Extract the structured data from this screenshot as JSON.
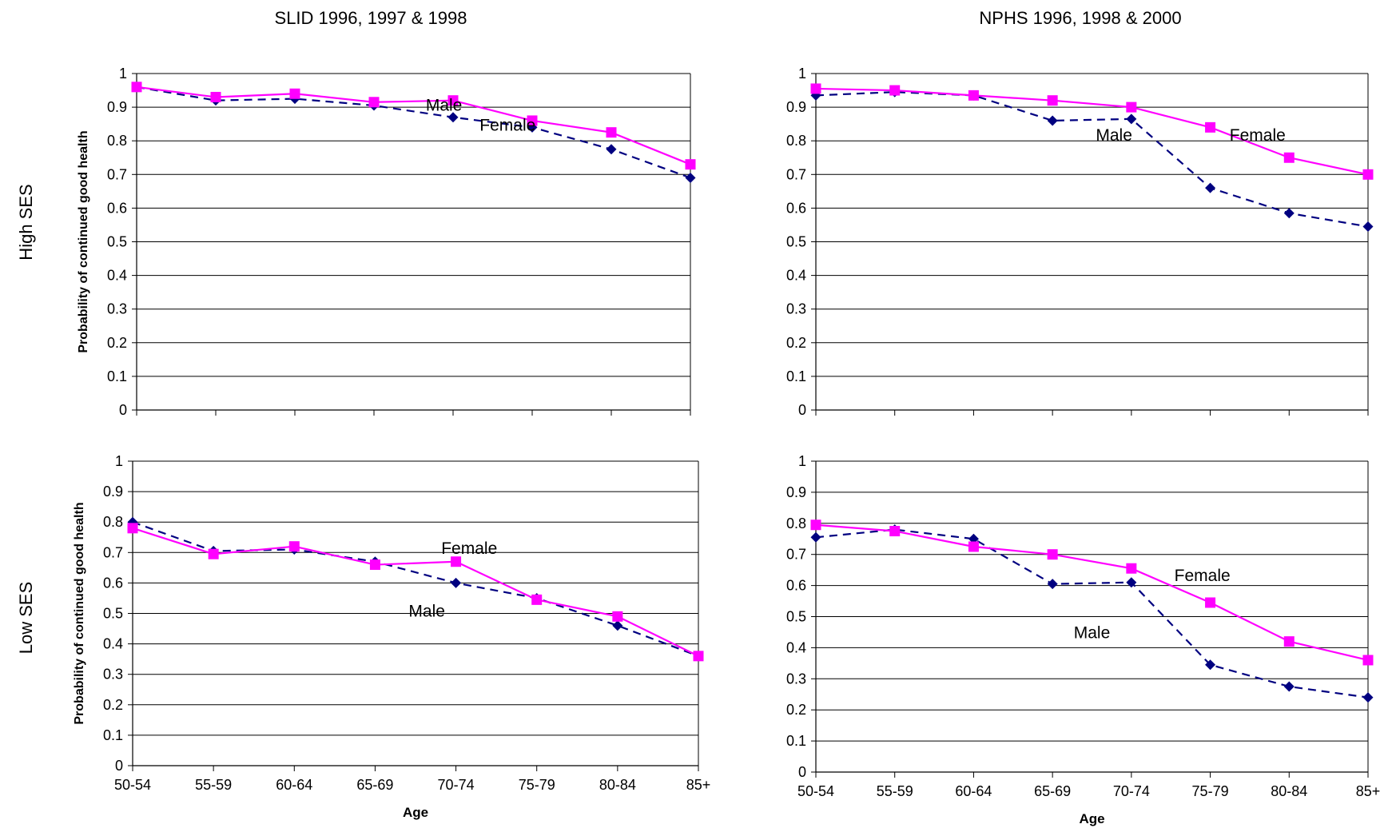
{
  "figure": {
    "column_titles": [
      "SLID 1996, 1997 & 1998",
      "NPHS 1996, 1998 & 2000"
    ],
    "row_labels": [
      "High SES",
      "Low SES"
    ]
  },
  "colors": {
    "male": "#000080",
    "female": "#ff00ff",
    "grid": "#000000"
  },
  "chart_data": [
    {
      "type": "line",
      "panel": "SLID-High SES",
      "title": "SLID 1996, 1997 & 1998",
      "row": "High SES",
      "xlabel": "",
      "ylabel": "Probability of continued good health",
      "categories": [
        "50-54",
        "55-59",
        "60-64",
        "65-69",
        "70-74",
        "75-79",
        "80-84",
        "85+"
      ],
      "show_x_ticks": false,
      "ylim": [
        0,
        1
      ],
      "yticks": [
        "0",
        "0.1",
        "0.2",
        "0.3",
        "0.4",
        "0.5",
        "0.6",
        "0.7",
        "0.8",
        "0.9",
        "1"
      ],
      "grid": true,
      "series": [
        {
          "name": "Male",
          "values": [
            0.96,
            0.92,
            0.925,
            0.905,
            0.87,
            0.84,
            0.775,
            0.69
          ]
        },
        {
          "name": "Female",
          "values": [
            0.96,
            0.93,
            0.94,
            0.915,
            0.92,
            0.86,
            0.825,
            0.73
          ]
        }
      ],
      "annotations": [
        "Female",
        "Male"
      ]
    },
    {
      "type": "line",
      "panel": "NPHS-High SES",
      "title": "NPHS 1996, 1998 & 2000",
      "row": "High SES",
      "xlabel": "",
      "ylabel": "",
      "categories": [
        "50-54",
        "55-59",
        "60-64",
        "65-69",
        "70-74",
        "75-79",
        "80-84",
        "85+"
      ],
      "show_x_ticks": false,
      "ylim": [
        0,
        1
      ],
      "yticks": [
        "0",
        "0.1",
        "0.2",
        "0.3",
        "0.4",
        "0.5",
        "0.6",
        "0.7",
        "0.8",
        "0.9",
        "1"
      ],
      "grid": true,
      "series": [
        {
          "name": "Male",
          "values": [
            0.935,
            0.945,
            0.935,
            0.86,
            0.865,
            0.66,
            0.585,
            0.545
          ]
        },
        {
          "name": "Female",
          "values": [
            0.955,
            0.95,
            0.935,
            0.92,
            0.9,
            0.84,
            0.75,
            0.7
          ]
        }
      ],
      "annotations": [
        "Female",
        "Male"
      ]
    },
    {
      "type": "line",
      "panel": "SLID-Low SES",
      "title": "",
      "row": "Low SES",
      "xlabel": "Age",
      "ylabel": "Probability of continued good health",
      "categories": [
        "50-54",
        "55-59",
        "60-64",
        "65-69",
        "70-74",
        "75-79",
        "80-84",
        "85+"
      ],
      "show_x_ticks": true,
      "ylim": [
        0,
        1
      ],
      "yticks": [
        "0",
        "0.1",
        "0.2",
        "0.3",
        "0.4",
        "0.5",
        "0.6",
        "0.7",
        "0.8",
        "0.9",
        "1"
      ],
      "grid": true,
      "series": [
        {
          "name": "Male",
          "values": [
            0.8,
            0.705,
            0.71,
            0.67,
            0.6,
            0.55,
            0.46,
            0.36
          ]
        },
        {
          "name": "Female",
          "values": [
            0.78,
            0.695,
            0.72,
            0.66,
            0.67,
            0.545,
            0.49,
            0.36
          ]
        }
      ],
      "annotations": [
        "Female",
        "Male"
      ]
    },
    {
      "type": "line",
      "panel": "NPHS-Low SES",
      "title": "",
      "row": "Low SES",
      "xlabel": "Age",
      "ylabel": "",
      "categories": [
        "50-54",
        "55-59",
        "60-64",
        "65-69",
        "70-74",
        "75-79",
        "80-84",
        "85+"
      ],
      "show_x_ticks": true,
      "ylim": [
        0,
        1
      ],
      "yticks": [
        "0",
        "0.1",
        "0.2",
        "0.3",
        "0.4",
        "0.5",
        "0.6",
        "0.7",
        "0.8",
        "0.9",
        "1"
      ],
      "grid": true,
      "series": [
        {
          "name": "Male",
          "values": [
            0.755,
            0.78,
            0.75,
            0.605,
            0.61,
            0.345,
            0.275,
            0.24
          ]
        },
        {
          "name": "Female",
          "values": [
            0.795,
            0.775,
            0.725,
            0.7,
            0.655,
            0.545,
            0.42,
            0.36
          ]
        }
      ],
      "annotations": [
        "Female",
        "Male"
      ]
    }
  ]
}
